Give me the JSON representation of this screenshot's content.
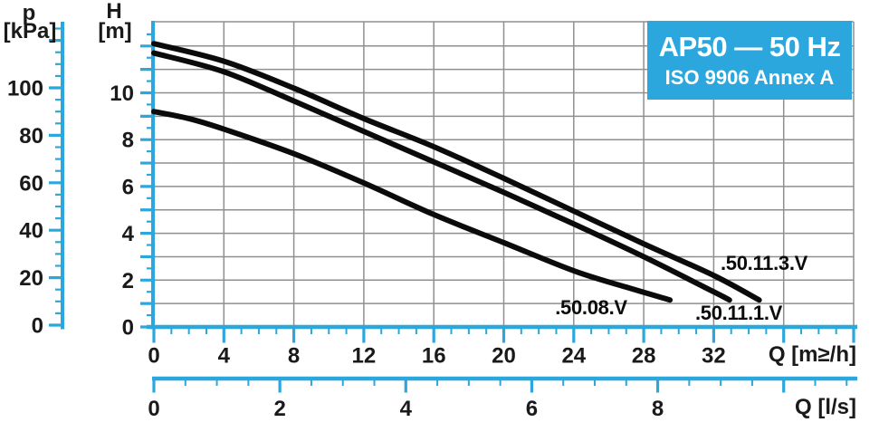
{
  "colors": {
    "accent": "#2BA7DE",
    "grid": "#8f8f8f",
    "curve": "#0b0b0b",
    "text": "#1a1a1a",
    "title_text": "#ffffff",
    "background": "#ffffff"
  },
  "title_box": {
    "line1": "AP50 — 50 Hz",
    "line2": "ISO 9906 Annex A"
  },
  "axes": {
    "pressure": {
      "name": "p",
      "unit": "[kPa]",
      "labeled_ticks": [
        0,
        20,
        40,
        60,
        80,
        100
      ],
      "major_step": 20,
      "minor_step": 5,
      "max": 125
    },
    "head": {
      "name": "H",
      "unit": "[m]",
      "labeled_ticks": [
        0,
        2,
        4,
        6,
        8,
        10
      ],
      "major_step": 1,
      "minor_step": 0.5,
      "max": 13
    },
    "flow_m3h": {
      "unit_label": "Q [m≥/h]",
      "labeled_ticks": [
        0,
        4,
        8,
        12,
        16,
        20,
        24,
        28,
        32
      ],
      "major_step": 4,
      "minor_step": 1,
      "max": 40
    },
    "flow_ls": {
      "unit_label": "Q [l/s]",
      "labeled_ticks": [
        0,
        2,
        4,
        6,
        8
      ],
      "major_step": 2,
      "minor_step": 0.5,
      "max": 11
    }
  },
  "chart_data": {
    "type": "line",
    "title": "AP50 — 50 Hz",
    "subtitle": "ISO 9906 Annex A",
    "xlabel": "Q [m≥/h] / Q [l/s]",
    "ylabel": "H [m] / p [kPa]",
    "xlim": [
      0,
      40
    ],
    "ylim": [
      0,
      13
    ],
    "grid": true,
    "legend_position": "curve-end-labels",
    "series": [
      {
        "name": ".50.11.3.V",
        "points": [
          [
            0,
            12.1
          ],
          [
            4,
            11.35
          ],
          [
            8,
            10.2
          ],
          [
            12,
            8.9
          ],
          [
            16,
            7.7
          ],
          [
            20,
            6.35
          ],
          [
            24,
            4.95
          ],
          [
            28,
            3.55
          ],
          [
            32,
            2.2
          ],
          [
            34.6,
            1.15
          ]
        ]
      },
      {
        "name": ".50.11.1.V",
        "points": [
          [
            0,
            11.7
          ],
          [
            4,
            10.9
          ],
          [
            8,
            9.65
          ],
          [
            12,
            8.35
          ],
          [
            16,
            7.05
          ],
          [
            20,
            5.75
          ],
          [
            24,
            4.4
          ],
          [
            28,
            3.0
          ],
          [
            32,
            1.5
          ],
          [
            32.9,
            1.15
          ]
        ]
      },
      {
        "name": ".50.08.V",
        "points": [
          [
            0,
            9.2
          ],
          [
            2,
            8.9
          ],
          [
            4,
            8.45
          ],
          [
            8,
            7.4
          ],
          [
            12,
            6.15
          ],
          [
            16,
            4.8
          ],
          [
            20,
            3.6
          ],
          [
            24,
            2.4
          ],
          [
            27,
            1.7
          ],
          [
            29.5,
            1.15
          ]
        ]
      }
    ]
  }
}
